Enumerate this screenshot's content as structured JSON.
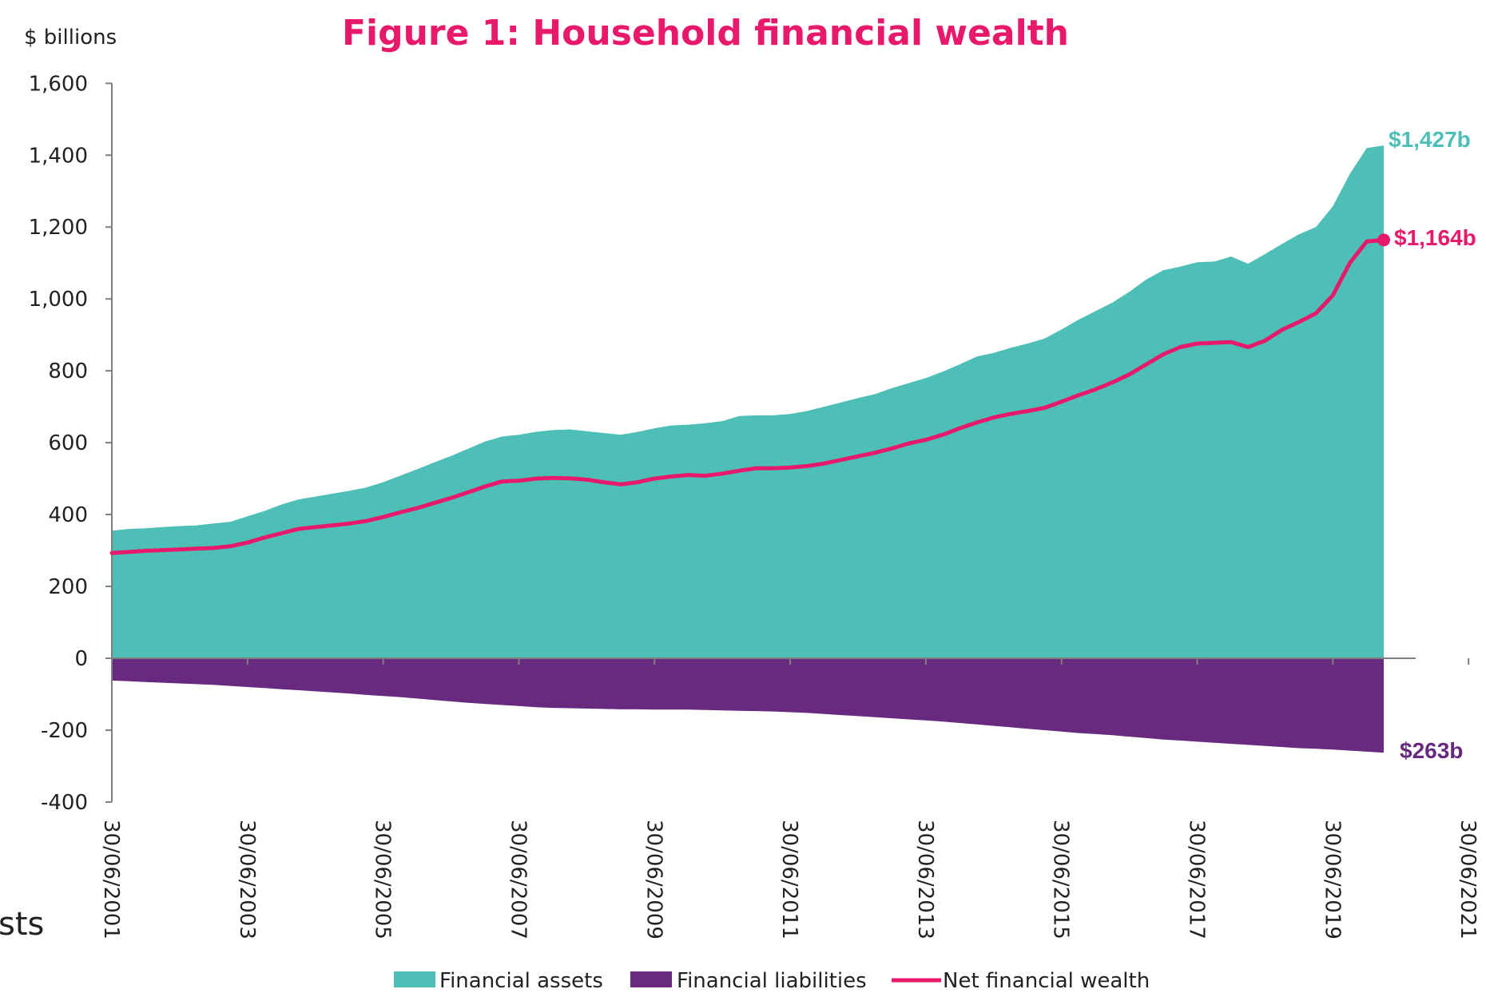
{
  "chart_data": {
    "type": "area",
    "title": "Figure 1:  Household financial wealth",
    "ylabel": "$ billions",
    "xlabel": "",
    "ylim": [
      -400,
      1600
    ],
    "yticks": [
      "1,600",
      "1,400",
      "1,200",
      "1,000",
      "800",
      "600",
      "400",
      "200",
      "0",
      "-200",
      "-400"
    ],
    "ytick_values": [
      1600,
      1400,
      1200,
      1000,
      800,
      600,
      400,
      200,
      0,
      -200,
      -400
    ],
    "xticks": [
      "30/06/2001",
      "30/06/2003",
      "30/06/2005",
      "30/06/2007",
      "30/06/2009",
      "30/06/2011",
      "30/06/2013",
      "30/06/2015",
      "30/06/2017",
      "30/06/2019",
      "30/06/2021"
    ],
    "x_start": "30/06/2001",
    "x_end": "30/06/2021",
    "frequency": "quarterly",
    "series": [
      {
        "name": "Financial assets",
        "kind": "area",
        "color": "#4dbfb7",
        "values": [
          355,
          360,
          362,
          365,
          368,
          370,
          375,
          380,
          395,
          410,
          428,
          442,
          450,
          458,
          466,
          475,
          490,
          508,
          526,
          545,
          563,
          583,
          603,
          617,
          622,
          630,
          635,
          637,
          632,
          627,
          622,
          630,
          640,
          648,
          650,
          654,
          660,
          674,
          676,
          676,
          680,
          688,
          700,
          712,
          724,
          735,
          752,
          766,
          780,
          798,
          818,
          840,
          850,
          864,
          876,
          890,
          915,
          942,
          966,
          990,
          1020,
          1054,
          1080,
          1090,
          1102,
          1104,
          1118,
          1098,
          1125,
          1153,
          1180,
          1200,
          1258,
          1348,
          1420,
          1427
        ]
      },
      {
        "name": "Financial liabilities",
        "kind": "area",
        "color": "#682a7f",
        "values": [
          -62,
          -64,
          -66,
          -68,
          -70,
          -72,
          -74,
          -77,
          -80,
          -83,
          -86,
          -89,
          -92,
          -95,
          -98,
          -102,
          -105,
          -108,
          -112,
          -116,
          -120,
          -124,
          -127,
          -130,
          -133,
          -136,
          -138,
          -139,
          -140,
          -141,
          -142,
          -142,
          -143,
          -143,
          -143,
          -144,
          -145,
          -146,
          -147,
          -148,
          -150,
          -152,
          -155,
          -158,
          -161,
          -164,
          -167,
          -170,
          -173,
          -176,
          -180,
          -184,
          -188,
          -192,
          -196,
          -200,
          -204,
          -208,
          -211,
          -214,
          -218,
          -222,
          -226,
          -229,
          -232,
          -235,
          -238,
          -241,
          -244,
          -247,
          -250,
          -252,
          -254,
          -257,
          -260,
          -263
        ]
      },
      {
        "name": "Net financial wealth",
        "kind": "line",
        "color": "#e8196b",
        "values": [
          293,
          296,
          299,
          301,
          303,
          305,
          307,
          312,
          322,
          336,
          348,
          360,
          365,
          370,
          375,
          382,
          393,
          406,
          418,
          432,
          446,
          462,
          478,
          492,
          494,
          500,
          502,
          501,
          497,
          490,
          484,
          490,
          500,
          506,
          510,
          508,
          514,
          522,
          529,
          529,
          531,
          535,
          542,
          552,
          562,
          572,
          584,
          598,
          608,
          622,
          640,
          656,
          670,
          680,
          688,
          697,
          714,
          732,
          748,
          768,
          790,
          818,
          846,
          866,
          876,
          878,
          880,
          866,
          884,
          914,
          936,
          960,
          1010,
          1100,
          1160,
          1164
        ]
      }
    ],
    "end_labels": [
      {
        "series": "Financial assets",
        "text": "$1,427b",
        "color": "#4dbfb7"
      },
      {
        "series": "Net financial wealth",
        "text": "$1,164b",
        "color": "#e8196b"
      },
      {
        "series": "Financial liabilities",
        "text": "$263b",
        "color": "#682a7f"
      }
    ],
    "legend": {
      "placement": "bottom",
      "items": [
        {
          "label": "Financial assets",
          "kind": "box",
          "color": "#4dbfb7"
        },
        {
          "label": "Financial liabilities",
          "kind": "box",
          "color": "#682a7f"
        },
        {
          "label": "Net financial wealth",
          "kind": "line",
          "color": "#e8196b"
        }
      ]
    },
    "grid": false
  },
  "stray_text": "sts"
}
